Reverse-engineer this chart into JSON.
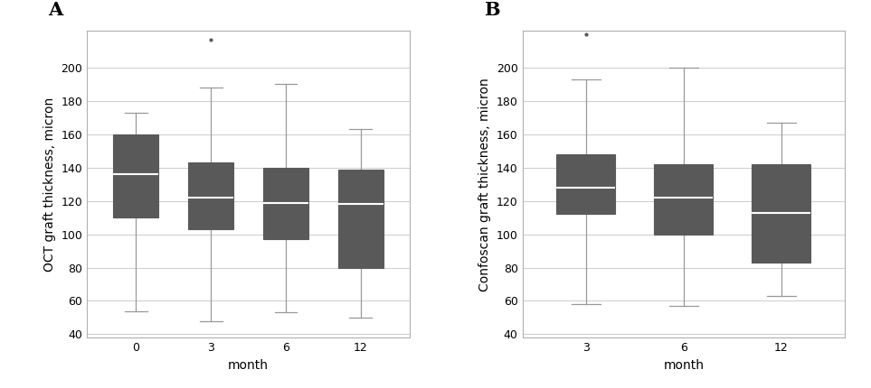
{
  "panel_A": {
    "label": "A",
    "ylabel": "OCT graft thickness, micron",
    "xlabel": "month",
    "cat_labels": [
      "0",
      "3",
      "6",
      "12"
    ],
    "boxes": [
      {
        "whislo": 54,
        "q1": 110,
        "med": 136,
        "q3": 160,
        "whishi": 173,
        "fliers": []
      },
      {
        "whislo": 48,
        "q1": 103,
        "med": 122,
        "q3": 143,
        "whishi": 188,
        "fliers": [
          217
        ]
      },
      {
        "whislo": 53,
        "q1": 97,
        "med": 119,
        "q3": 140,
        "whishi": 190,
        "fliers": []
      },
      {
        "whislo": 50,
        "q1": 80,
        "med": 118,
        "q3": 139,
        "whishi": 163,
        "fliers": []
      }
    ],
    "ylim": [
      38,
      222
    ],
    "yticks": [
      40,
      60,
      80,
      100,
      120,
      140,
      160,
      180,
      200
    ]
  },
  "panel_B": {
    "label": "B",
    "ylabel": "Confoscan graft thickness, micron",
    "xlabel": "month",
    "cat_labels": [
      "3",
      "6",
      "12"
    ],
    "boxes": [
      {
        "whislo": 58,
        "q1": 112,
        "med": 128,
        "q3": 148,
        "whishi": 193,
        "fliers": [
          220
        ]
      },
      {
        "whislo": 57,
        "q1": 100,
        "med": 122,
        "q3": 142,
        "whishi": 200,
        "fliers": []
      },
      {
        "whislo": 63,
        "q1": 83,
        "med": 113,
        "q3": 142,
        "whishi": 167,
        "fliers": []
      }
    ],
    "ylim": [
      38,
      222
    ],
    "yticks": [
      40,
      60,
      80,
      100,
      120,
      140,
      160,
      180,
      200
    ]
  },
  "box_color": "#595959",
  "median_color": "#ffffff",
  "whisker_color": "#999999",
  "cap_color": "#999999",
  "flier_color": "#595959",
  "background_color": "#ffffff",
  "grid_color": "#d0d0d0",
  "label_fontsize": 10,
  "tick_fontsize": 9,
  "panel_label_fontsize": 15,
  "box_width": 0.6
}
